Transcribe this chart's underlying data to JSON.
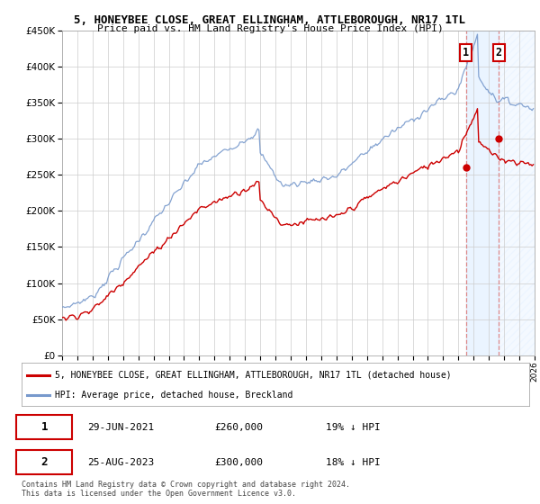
{
  "title1": "5, HONEYBEE CLOSE, GREAT ELLINGHAM, ATTLEBOROUGH, NR17 1TL",
  "title2": "Price paid vs. HM Land Registry's House Price Index (HPI)",
  "ylim": [
    0,
    450000
  ],
  "yticks": [
    0,
    50000,
    100000,
    150000,
    200000,
    250000,
    300000,
    350000,
    400000,
    450000
  ],
  "hpi_color": "#7799cc",
  "price_color": "#cc0000",
  "annotation_line_color": "#dd8888",
  "shading_color": "#ddeeff",
  "legend_label_price": "5, HONEYBEE CLOSE, GREAT ELLINGHAM, ATTLEBOROUGH, NR17 1TL (detached house)",
  "legend_label_hpi": "HPI: Average price, detached house, Breckland",
  "note1_date": "29-JUN-2021",
  "note1_price": "£260,000",
  "note1_hpi": "19% ↓ HPI",
  "note2_date": "25-AUG-2023",
  "note2_price": "£300,000",
  "note2_hpi": "18% ↓ HPI",
  "footer": "Contains HM Land Registry data © Crown copyright and database right 2024.\nThis data is licensed under the Open Government Licence v3.0.",
  "bg_color": "#ffffff",
  "grid_color": "#cccccc",
  "trans1_year": 2021.5,
  "trans1_price": 260000,
  "trans2_year": 2023.65,
  "trans2_price": 300000
}
